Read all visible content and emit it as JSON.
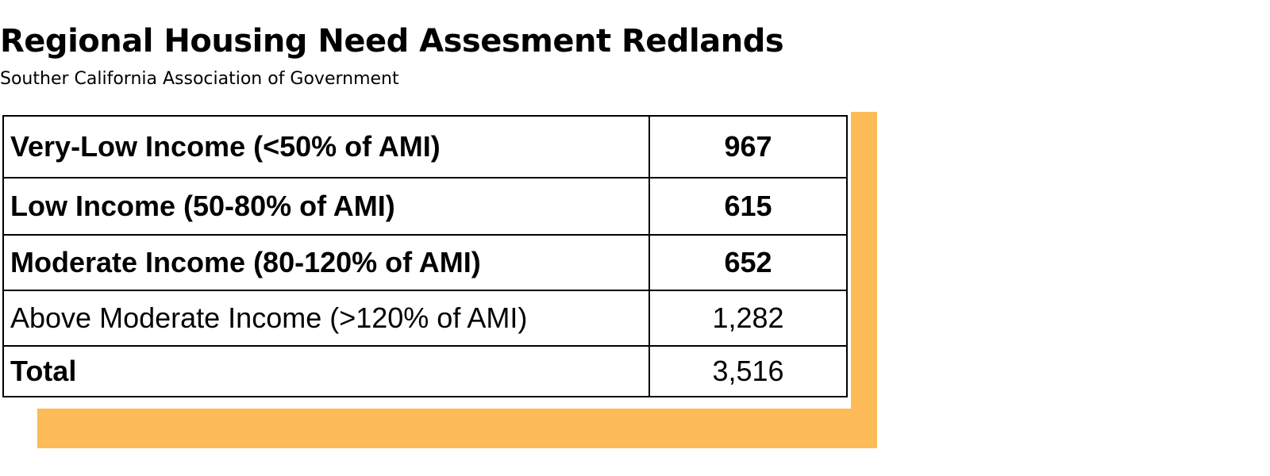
{
  "header": {
    "title": "Regional Housing Need Assesment Redlands",
    "subtitle": "Souther California Association of Government"
  },
  "colors": {
    "accent": "#fdbc58"
  },
  "table": {
    "rows": [
      {
        "label": "Very-Low Income (<50% of AMI)",
        "value": "967"
      },
      {
        "label": "Low Income (50-80% of AMI)",
        "value": "615"
      },
      {
        "label": "Moderate Income (80-120% of AMI)",
        "value": "652"
      },
      {
        "label": "Above Moderate Income (>120% of AMI)",
        "value": "1,282"
      },
      {
        "label": "Total",
        "value": "3,516"
      }
    ]
  }
}
